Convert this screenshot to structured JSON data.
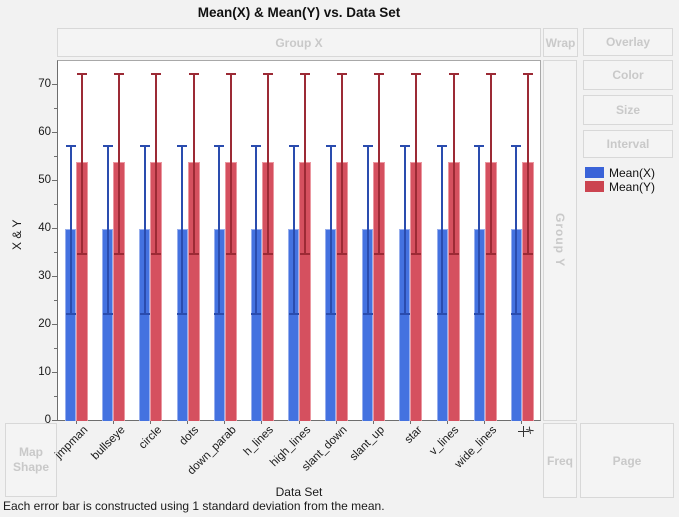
{
  "title": "Mean(X) & Mean(Y) vs. Data Set",
  "footer": "Each error bar is constructed using 1 standard deviation from the mean.",
  "drop_zones": {
    "group_x": "Group X",
    "wrap": "Wrap",
    "overlay": "Overlay",
    "color": "Color",
    "size": "Size",
    "interval": "Interval",
    "group_y": "Group Y",
    "map_shape": "Map Shape",
    "freq": "Freq",
    "page": "Page"
  },
  "legend": {
    "items": [
      {
        "label": "Mean(X)",
        "color": "#3a63d8"
      },
      {
        "label": "Mean(Y)",
        "color": "#cb4450"
      }
    ]
  },
  "chart_data": {
    "type": "bar",
    "title": "Mean(X) & Mean(Y) vs. Data Set",
    "xlabel": "Data Set",
    "ylabel": "X & Y",
    "ylim": [
      0,
      75
    ],
    "y_major_ticks": [
      0,
      10,
      20,
      30,
      40,
      50,
      60,
      70
    ],
    "y_minor_step": 5,
    "grid": false,
    "legend_position": "right",
    "error_bars": "1 standard deviation",
    "categories": [
      "jmpman",
      "bullseye",
      "circle",
      "dots",
      "down_parab",
      "h_lines",
      "high_lines",
      "slant_down",
      "slant_up",
      "star",
      "v_lines",
      "wide_lines",
      "x"
    ],
    "series": [
      {
        "name": "Mean(X)",
        "fill": "#4472e0",
        "edge": "#96aeee",
        "error_color": "#2a4cae",
        "values": [
          40,
          40,
          40,
          40,
          40,
          40,
          40,
          40,
          40,
          40,
          40,
          40,
          40
        ],
        "error_low": [
          22.5,
          22.5,
          22.5,
          22.5,
          22.5,
          22.5,
          22.5,
          22.5,
          22.5,
          22.5,
          22.5,
          22.5,
          22.5
        ],
        "error_high": [
          57.5,
          57.5,
          57.5,
          57.5,
          57.5,
          57.5,
          57.5,
          57.5,
          57.5,
          57.5,
          57.5,
          57.5,
          57.5
        ]
      },
      {
        "name": "Mean(Y)",
        "fill": "#d5505f",
        "edge": "#eb97a0",
        "error_color": "#9c2a35",
        "values": [
          54,
          54,
          54,
          54,
          54,
          54,
          54,
          54,
          54,
          54,
          54,
          54,
          54
        ],
        "error_low": [
          35,
          35,
          35,
          35,
          35,
          35,
          35,
          35,
          35,
          35,
          35,
          35,
          35
        ],
        "error_high": [
          72.5,
          72.5,
          72.5,
          72.5,
          72.5,
          72.5,
          72.5,
          72.5,
          72.5,
          72.5,
          72.5,
          72.5,
          72.5
        ]
      }
    ]
  }
}
